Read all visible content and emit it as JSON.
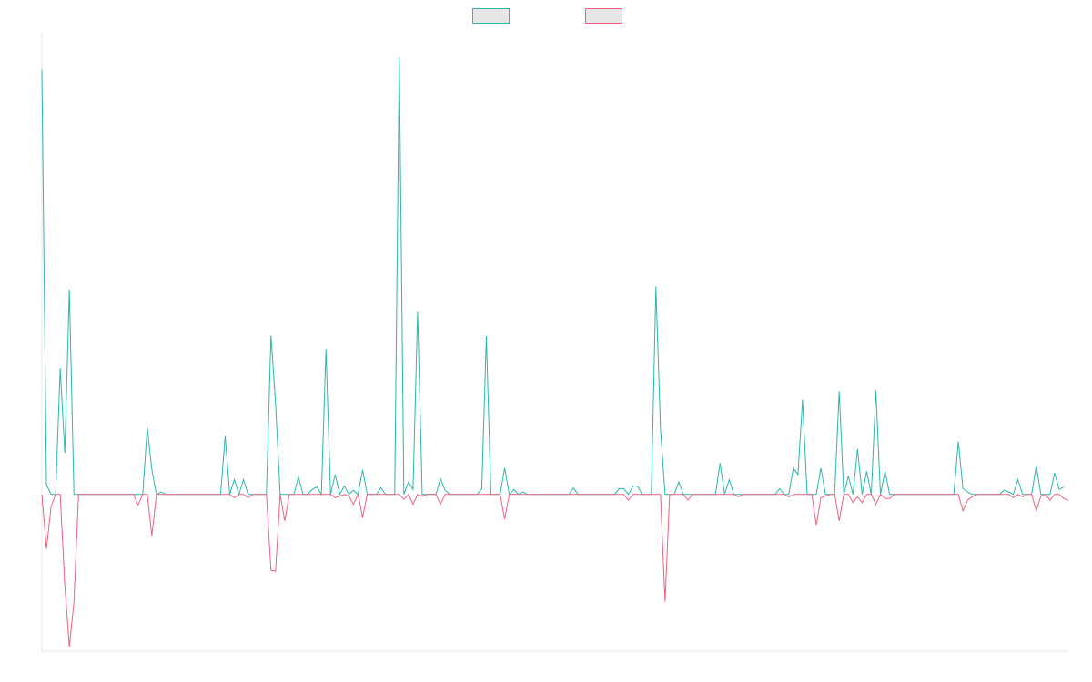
{
  "chart_data": {
    "type": "line",
    "title": "",
    "xlabel": "",
    "ylabel": "",
    "legend": "top-center",
    "grid": false,
    "x_start": 0,
    "x_step": 1,
    "ylim": [
      -1.9,
      5.6
    ],
    "series": [
      {
        "color": "#2bb7ad",
        "legend_fill": "#e6e6e6",
        "values": [
          5.15,
          0.12,
          0,
          0,
          1.53,
          0.5,
          2.48,
          0,
          0,
          0,
          0,
          0,
          0,
          0,
          0,
          0,
          0,
          0,
          0,
          0,
          0,
          0,
          0,
          0.81,
          0.3,
          0,
          0.03,
          0,
          0,
          0,
          0,
          0,
          0,
          0,
          0,
          0,
          0,
          0,
          0,
          0,
          0.71,
          0,
          0.18,
          0,
          0.18,
          0,
          0,
          0,
          0,
          0,
          1.93,
          1.1,
          0,
          0,
          0,
          0,
          0.21,
          0,
          0,
          0.06,
          0.09,
          0,
          1.76,
          0,
          0.24,
          0,
          0.1,
          0,
          0.05,
          0,
          0.3,
          0,
          0,
          0,
          0.08,
          0,
          0,
          0,
          5.3,
          0,
          0.15,
          0.06,
          2.22,
          0,
          0,
          0,
          0,
          0.19,
          0.05,
          0,
          0,
          0,
          0,
          0,
          0,
          0,
          0.07,
          1.92,
          0,
          0,
          0,
          0.32,
          0,
          0.06,
          0,
          0.03,
          0,
          0,
          0,
          0,
          0,
          0,
          0,
          0,
          0,
          0,
          0.08,
          0,
          0,
          0,
          0,
          0,
          0,
          0,
          0,
          0,
          0.07,
          0.07,
          0,
          0.1,
          0.1,
          0,
          0,
          0,
          2.52,
          0.8,
          0,
          0,
          0,
          0.15,
          0,
          0,
          0,
          0,
          0,
          0,
          0,
          0,
          0.38,
          0,
          0.18,
          0,
          0,
          0,
          0,
          0,
          0,
          0,
          0,
          0,
          0,
          0.07,
          0,
          0,
          0.32,
          0.24,
          1.15,
          0,
          0,
          0,
          0.32,
          0,
          0,
          0,
          1.25,
          0,
          0.22,
          0,
          0.55,
          0,
          0.28,
          0,
          1.26,
          0,
          0.28,
          0,
          0,
          0,
          0,
          0,
          0,
          0,
          0,
          0,
          0,
          0,
          0,
          0,
          0,
          0,
          0.64,
          0.07,
          0.03,
          0,
          0,
          0,
          0,
          0,
          0,
          0,
          0.05,
          0.03,
          0,
          0.18,
          0,
          0,
          0,
          0.35,
          0,
          0,
          0,
          0.26,
          0.06,
          0.09
        ]
      },
      {
        "color": "#f0617f",
        "legend_fill": "#e6e6e6",
        "values": [
          0,
          -0.66,
          -0.15,
          0,
          0,
          -1.1,
          -1.85,
          -1.3,
          0,
          0,
          0,
          0,
          0,
          0,
          0,
          0,
          0,
          0,
          0,
          0,
          0,
          -0.13,
          0,
          0,
          -0.5,
          0,
          0,
          0,
          0,
          0,
          0,
          0,
          0,
          0,
          0,
          0,
          0,
          0,
          0,
          0,
          0,
          0,
          -0.04,
          0,
          0,
          -0.04,
          0,
          0,
          0,
          0,
          -0.92,
          -0.93,
          0,
          -0.32,
          0,
          0,
          0,
          0,
          0,
          0,
          0,
          0,
          0,
          0,
          -0.04,
          -0.02,
          0,
          -0.02,
          -0.12,
          0,
          -0.28,
          0,
          0,
          0,
          0,
          0,
          0,
          0,
          0,
          -0.06,
          0,
          -0.12,
          0,
          -0.02,
          0,
          0,
          0,
          -0.12,
          0,
          0,
          0,
          0,
          0,
          0,
          0,
          0,
          0,
          0,
          0,
          0,
          0,
          -0.3,
          0,
          0,
          0,
          0,
          0,
          0,
          0,
          0,
          0,
          0,
          0,
          0,
          0,
          0,
          0,
          0,
          0,
          0,
          0,
          0,
          0,
          0,
          0,
          0,
          0,
          0,
          -0.07,
          0,
          0,
          0,
          0,
          0,
          0,
          0,
          -1.3,
          0,
          0,
          0,
          0,
          -0.07,
          0,
          0,
          0,
          0,
          0,
          0,
          0,
          0,
          0,
          0,
          -0.03,
          0,
          0,
          0,
          0,
          0,
          0,
          0,
          0,
          0,
          0,
          -0.03,
          0,
          0,
          0,
          0,
          0,
          -0.37,
          -0.04,
          -0.02,
          0,
          0,
          -0.32,
          0,
          0,
          -0.1,
          -0.03,
          -0.1,
          0,
          0,
          -0.12,
          0,
          -0.05,
          -0.05,
          0,
          0,
          0,
          0,
          0,
          0,
          0,
          0,
          0,
          0,
          0,
          0,
          0,
          0,
          0,
          -0.2,
          -0.07,
          -0.03,
          0,
          0,
          0,
          0,
          0,
          0,
          0,
          0,
          -0.04,
          0,
          -0.03,
          0,
          0,
          -0.2,
          -0.02,
          0,
          -0.07,
          0,
          0,
          -0.05,
          -0.07
        ]
      }
    ]
  }
}
